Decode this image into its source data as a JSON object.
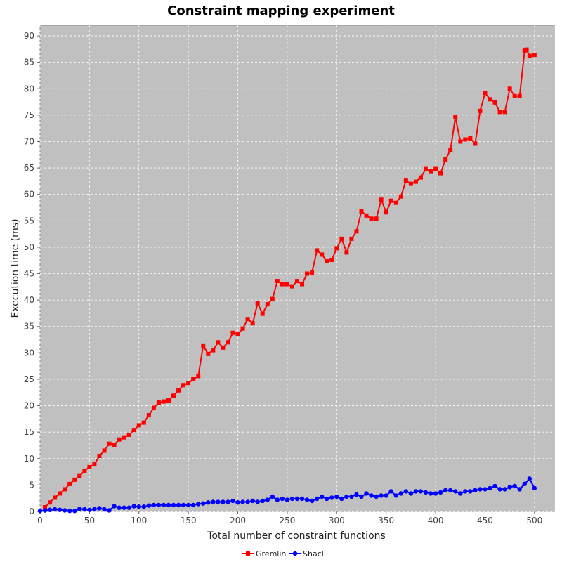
{
  "chart_data": {
    "type": "line",
    "title": "Constraint mapping experiment",
    "xlabel": "Total number of constraint functions",
    "ylabel": "Execution time (ms)",
    "xlim": [
      0,
      520
    ],
    "ylim": [
      0,
      92
    ],
    "xticks": [
      0,
      50,
      100,
      150,
      200,
      250,
      300,
      350,
      400,
      450,
      500
    ],
    "yticks": [
      0,
      5,
      10,
      15,
      20,
      25,
      30,
      35,
      40,
      45,
      50,
      55,
      60,
      65,
      70,
      75,
      80,
      85,
      90
    ],
    "grid": true,
    "legend": "bottom-center",
    "series": [
      {
        "name": "Gremlin",
        "color": "#ff0000",
        "marker": "square",
        "x": [
          5,
          10,
          15,
          20,
          25,
          30,
          35,
          40,
          45,
          50,
          55,
          60,
          65,
          70,
          75,
          80,
          85,
          90,
          95,
          100,
          105,
          110,
          115,
          120,
          125,
          130,
          135,
          140,
          145,
          150,
          155,
          160,
          165,
          170,
          175,
          180,
          185,
          190,
          195,
          200,
          205,
          210,
          215,
          220,
          225,
          230,
          235,
          240,
          245,
          250,
          255,
          260,
          265,
          270,
          275,
          280,
          285,
          290,
          295,
          300,
          305,
          310,
          315,
          320,
          325,
          330,
          335,
          340,
          345,
          350,
          355,
          360,
          365,
          370,
          375,
          380,
          385,
          390,
          395,
          400,
          405,
          410,
          415,
          420,
          425,
          430,
          435,
          440,
          445,
          450,
          455,
          460,
          465,
          470,
          475,
          480,
          485,
          490,
          492,
          495,
          500
        ],
        "y": [
          0.8,
          1.7,
          2.6,
          3.4,
          4.2,
          5.2,
          6.0,
          6.7,
          7.7,
          8.4,
          8.9,
          10.5,
          11.5,
          12.8,
          12.6,
          13.6,
          14.0,
          14.5,
          15.4,
          16.3,
          16.8,
          18.2,
          19.6,
          20.6,
          20.8,
          21.0,
          21.9,
          22.9,
          23.9,
          24.3,
          25.0,
          25.6,
          31.4,
          29.8,
          30.5,
          32.0,
          31.0,
          32.0,
          33.8,
          33.5,
          34.6,
          36.4,
          35.6,
          39.4,
          37.4,
          39.2,
          40.2,
          43.6,
          43.0,
          43.0,
          42.6,
          43.6,
          43.0,
          45.0,
          45.2,
          49.4,
          48.6,
          47.4,
          47.6,
          49.8,
          51.6,
          49.0,
          51.6,
          53.0,
          56.8,
          56.0,
          55.4,
          55.4,
          59.0,
          56.6,
          58.8,
          58.4,
          59.6,
          62.6,
          62.0,
          62.4,
          63.2,
          64.8,
          64.4,
          64.8,
          64.0,
          66.6,
          68.4,
          74.6,
          70.0,
          70.4,
          70.6,
          69.6,
          75.8,
          79.2,
          78.0,
          77.4,
          75.6,
          75.6,
          80.0,
          78.6,
          78.6,
          87.2,
          87.4,
          86.2,
          86.4
        ]
      },
      {
        "name": "Shacl",
        "color": "#0000ff",
        "marker": "circle",
        "x": [
          0,
          5,
          10,
          15,
          20,
          25,
          30,
          35,
          40,
          45,
          50,
          55,
          60,
          65,
          70,
          75,
          80,
          85,
          90,
          95,
          100,
          105,
          110,
          115,
          120,
          125,
          130,
          135,
          140,
          145,
          150,
          155,
          160,
          165,
          170,
          175,
          180,
          185,
          190,
          195,
          200,
          205,
          210,
          215,
          220,
          225,
          230,
          235,
          240,
          245,
          250,
          255,
          260,
          265,
          270,
          275,
          280,
          285,
          290,
          295,
          300,
          305,
          310,
          315,
          320,
          325,
          330,
          335,
          340,
          345,
          350,
          355,
          360,
          365,
          370,
          375,
          380,
          385,
          390,
          395,
          400,
          405,
          410,
          415,
          420,
          425,
          430,
          435,
          440,
          445,
          450,
          455,
          460,
          465,
          470,
          475,
          480,
          485,
          490,
          495,
          500
        ],
        "y": [
          0.1,
          0.2,
          0.3,
          0.4,
          0.3,
          0.2,
          0.1,
          0.1,
          0.5,
          0.4,
          0.3,
          0.4,
          0.6,
          0.4,
          0.2,
          1.0,
          0.7,
          0.7,
          0.7,
          1.0,
          0.9,
          0.9,
          1.1,
          1.2,
          1.2,
          1.2,
          1.2,
          1.2,
          1.2,
          1.2,
          1.2,
          1.2,
          1.4,
          1.5,
          1.7,
          1.8,
          1.8,
          1.8,
          1.8,
          2.0,
          1.7,
          1.8,
          1.8,
          2.0,
          1.8,
          2.0,
          2.2,
          2.8,
          2.2,
          2.4,
          2.2,
          2.4,
          2.4,
          2.4,
          2.2,
          2.0,
          2.4,
          2.8,
          2.4,
          2.6,
          2.8,
          2.4,
          2.8,
          2.8,
          3.2,
          2.8,
          3.4,
          3.0,
          2.8,
          3.0,
          3.0,
          3.8,
          3.0,
          3.4,
          3.8,
          3.4,
          3.8,
          3.8,
          3.6,
          3.4,
          3.4,
          3.6,
          4.0,
          4.0,
          3.8,
          3.4,
          3.8,
          3.8,
          4.0,
          4.2,
          4.2,
          4.4,
          4.8,
          4.2,
          4.2,
          4.6,
          4.8,
          4.2,
          5.2,
          6.2,
          4.4
        ]
      }
    ]
  }
}
